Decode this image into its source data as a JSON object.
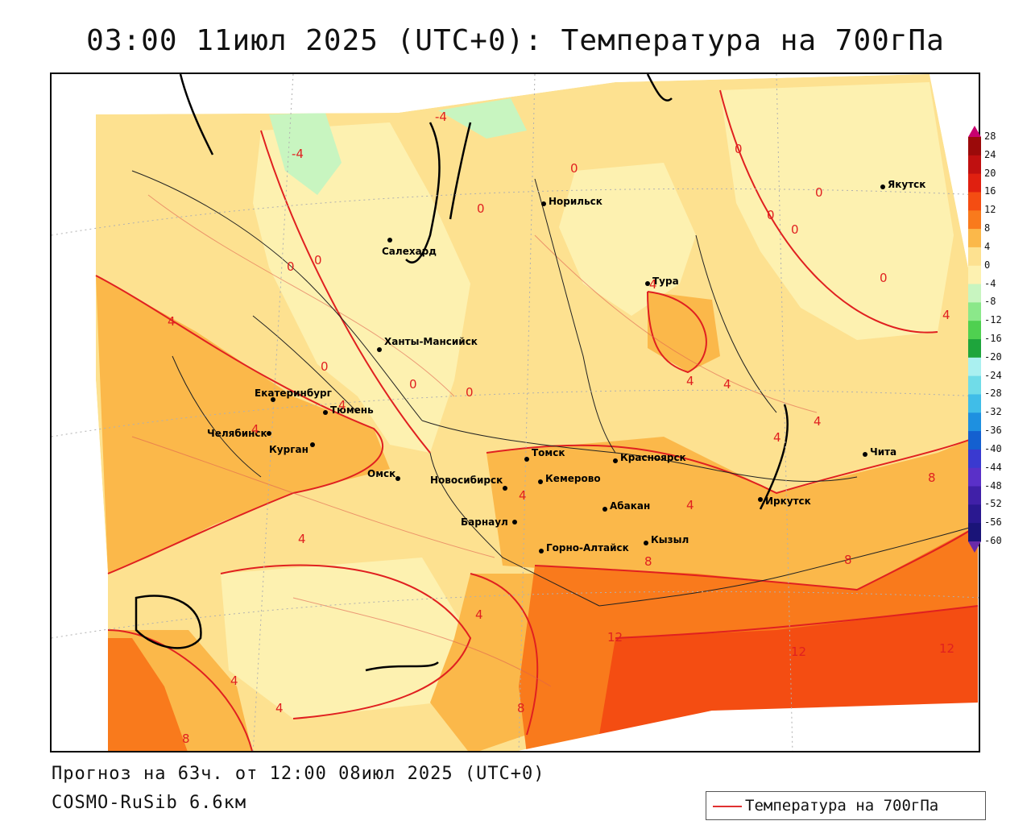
{
  "title": "03:00 11июл 2025 (UTC+0): Температура на 700гПа",
  "footer": {
    "forecast": "Прогноз на 63ч. от 12:00 08июл 2025 (UTC+0)",
    "model": "COSMO-RuSib 6.6км"
  },
  "legend": {
    "label": "Температура на 700гПа",
    "color": "#e03030"
  },
  "colors": {
    "t_minus4": "#c8f5c0",
    "t_0": "#fdf1b0",
    "t_4": "#fde190",
    "t_8": "#fbb84a",
    "t_12": "#f97a1c",
    "t_16": "#f03c10",
    "contour": "#e02020"
  },
  "colorbar": {
    "labels": [
      "28",
      "24",
      "20",
      "16",
      "12",
      "8",
      "4",
      "0",
      "-4",
      "-8",
      "-12",
      "-16",
      "-20",
      "-24",
      "-28",
      "-32",
      "-36",
      "-40",
      "-44",
      "-48",
      "-52",
      "-56",
      "-60"
    ],
    "colors": [
      "#c8006e",
      "#9b0a0a",
      "#c01010",
      "#e02010",
      "#f44d12",
      "#f97a1c",
      "#fbb84a",
      "#fde190",
      "#fdf1b0",
      "#c8f5c0",
      "#8be88a",
      "#4fd050",
      "#1ea53c",
      "#aaf0f0",
      "#70dce8",
      "#40bde8",
      "#1e90e0",
      "#1460d0",
      "#3a3ad0",
      "#5a30c8",
      "#4020a8",
      "#2a1890",
      "#1a1478",
      "#6a2aa8"
    ]
  },
  "cities": [
    {
      "name": "Норильск",
      "id": "norilsk"
    },
    {
      "name": "Якутск",
      "id": "yakutsk"
    },
    {
      "name": "Салехард",
      "id": "salekhard"
    },
    {
      "name": "Тура",
      "id": "tura"
    },
    {
      "name": "Ханты-Мансийск",
      "id": "khanty-mansiysk"
    },
    {
      "name": "Екатеринбург",
      "id": "ekaterinburg"
    },
    {
      "name": "Тюмень",
      "id": "tyumen"
    },
    {
      "name": "Челябинск",
      "id": "chelyabinsk"
    },
    {
      "name": "Курган",
      "id": "kurgan"
    },
    {
      "name": "Омск",
      "id": "omsk"
    },
    {
      "name": "Новосибирск",
      "id": "novosibirsk"
    },
    {
      "name": "Томск",
      "id": "tomsk"
    },
    {
      "name": "Кемерово",
      "id": "kemerovo"
    },
    {
      "name": "Красноярск",
      "id": "krasnoyarsk"
    },
    {
      "name": "Абакан",
      "id": "abakan"
    },
    {
      "name": "Барнаул",
      "id": "barnaul"
    },
    {
      "name": "Горно-Алтайск",
      "id": "gorno-altaysk"
    },
    {
      "name": "Кызыл",
      "id": "kyzyl"
    },
    {
      "name": "Иркутск",
      "id": "irkutsk"
    },
    {
      "name": "Чита",
      "id": "chita"
    }
  ],
  "contour_labels": [
    "-4",
    "-4",
    "0",
    "0",
    "0",
    "0",
    "0",
    "0",
    "0",
    "0",
    "0",
    "0",
    "0",
    "0",
    "4",
    "4",
    "4",
    "4",
    "4",
    "4",
    "4",
    "4",
    "4",
    "4",
    "4",
    "4",
    "4",
    "4",
    "4",
    "8",
    "8",
    "8",
    "8",
    "8",
    "12",
    "12",
    "12"
  ]
}
